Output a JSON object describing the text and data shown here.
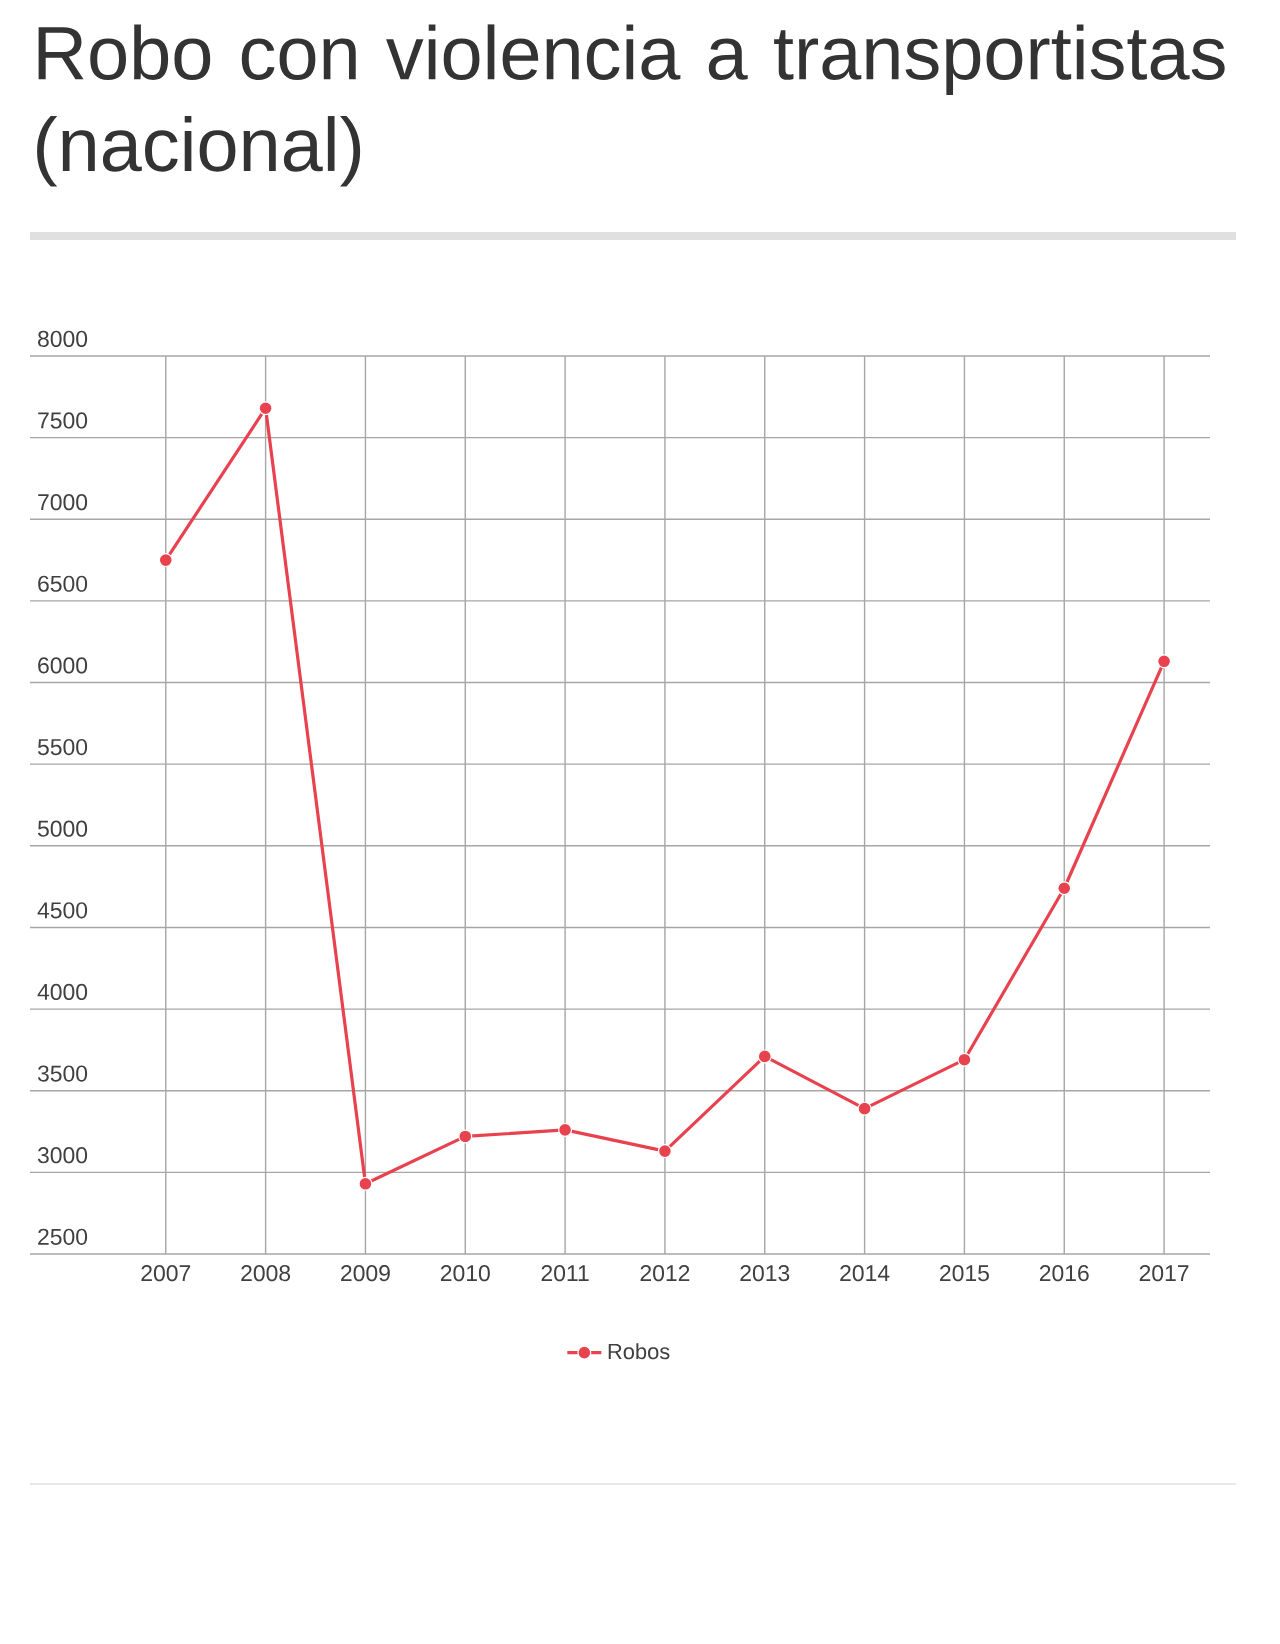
{
  "chart_data": {
    "type": "line",
    "title": "Robo con violencia a transportistas (nacional)",
    "categories": [
      "2007",
      "2008",
      "2009",
      "2010",
      "2011",
      "2012",
      "2013",
      "2014",
      "2015",
      "2016",
      "2017"
    ],
    "series": [
      {
        "name": "Robos",
        "color": "#e8424f",
        "values": [
          6750,
          7680,
          2930,
          3220,
          3260,
          3130,
          3710,
          3390,
          3690,
          4740,
          6130
        ]
      }
    ],
    "ylim": [
      2500,
      8000
    ],
    "yticks": [
      2500,
      3000,
      3500,
      4000,
      4500,
      5000,
      5500,
      6000,
      6500,
      7000,
      7500,
      8000
    ],
    "grid": true,
    "legend": "bottom",
    "marker": "circle"
  }
}
